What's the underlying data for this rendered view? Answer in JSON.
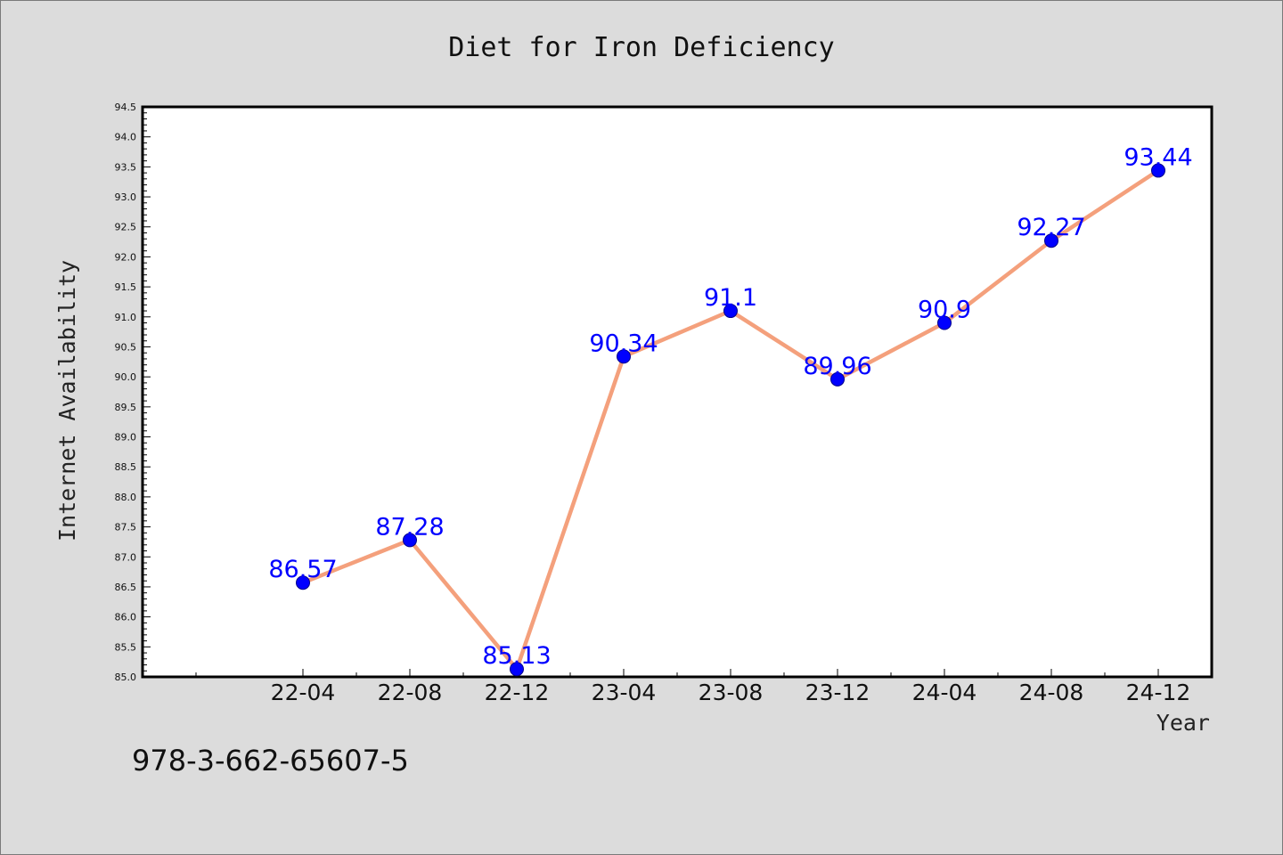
{
  "chart_data": {
    "type": "line",
    "title": "Diet for Iron Deficiency",
    "xlabel": "Year",
    "ylabel": "Internet Availability",
    "categories": [
      "22-04",
      "22-08",
      "22-12",
      "23-04",
      "23-08",
      "23-12",
      "24-04",
      "24-08",
      "24-12"
    ],
    "series": [
      {
        "values": [
          86.57,
          87.28,
          85.13,
          90.34,
          91.1,
          89.96,
          90.9,
          92.27,
          93.44
        ]
      }
    ],
    "data_labels": [
      "86.57",
      "87.28",
      "85.13",
      "90.34",
      "91.1",
      "89.96",
      "90.9",
      "92.27",
      "93.44"
    ],
    "ylim": [
      85.0,
      94.5
    ],
    "ytick_labels": [
      "85.0",
      "85.5",
      "86.0",
      "86.5",
      "87.0",
      "87.5",
      "88.0",
      "88.5",
      "89.0",
      "89.5",
      "90.0",
      "90.5",
      "91.0",
      "91.5",
      "92.0",
      "92.5",
      "93.0",
      "93.5",
      "94.0",
      "94.5"
    ],
    "grid": false,
    "legend": "none",
    "line_color": "#f4a07c",
    "marker_color": "#0000ff",
    "label_color": "#0000ff"
  },
  "footer": {
    "text": "978-3-662-65607-5"
  }
}
